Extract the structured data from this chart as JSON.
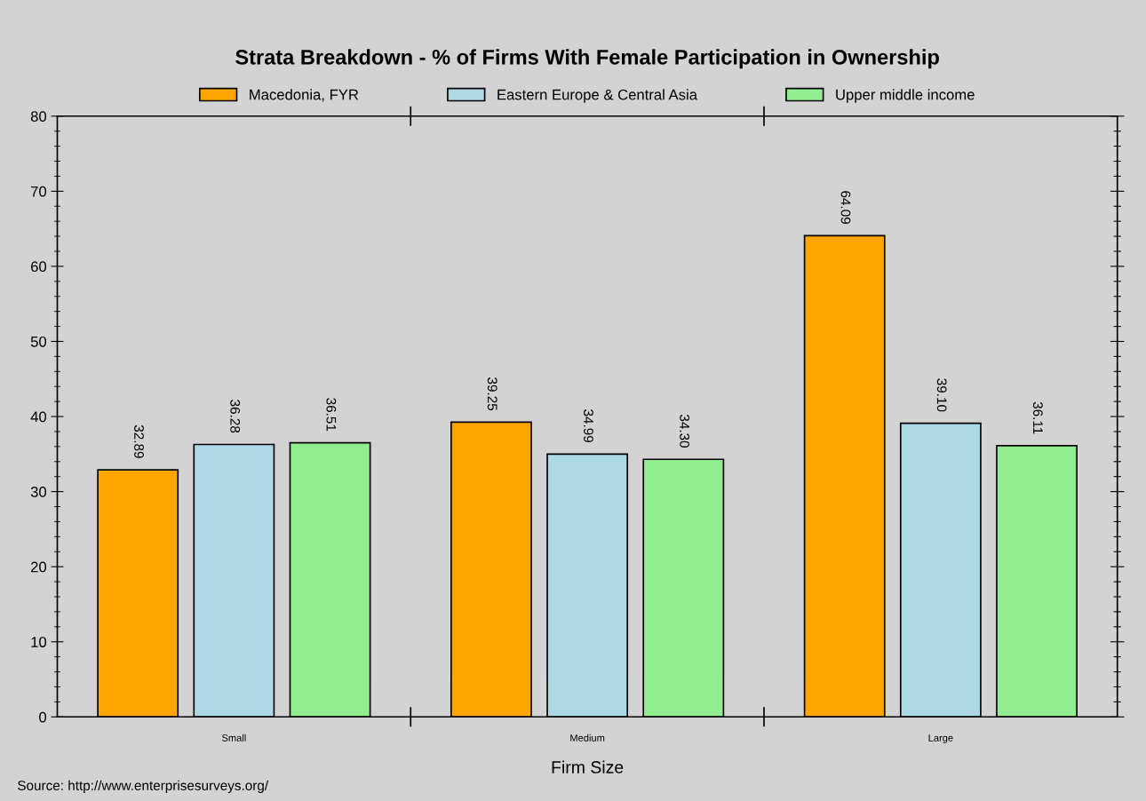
{
  "chart_data": {
    "type": "bar",
    "title": "Strata Breakdown - % of Firms With Female Participation in Ownership",
    "xlabel": "Firm Size",
    "categories": [
      "Small",
      "Medium",
      "Large"
    ],
    "series": [
      {
        "name": "Macedonia, FYR",
        "color": "#ffa500",
        "values": [
          32.89,
          39.25,
          64.09
        ],
        "value_labels": [
          "32.89",
          "39.25",
          "64.09"
        ]
      },
      {
        "name": "Eastern Europe & Central Asia",
        "color": "#add8e6",
        "values": [
          36.28,
          34.99,
          39.1
        ],
        "value_labels": [
          "36.28",
          "34.99",
          "39.10"
        ]
      },
      {
        "name": "Upper middle income",
        "color": "#90ee90",
        "values": [
          36.51,
          34.3,
          36.11
        ],
        "value_labels": [
          "36.51",
          "34.30",
          "36.11"
        ]
      }
    ],
    "ylim": [
      0,
      80
    ],
    "yticks": [
      0,
      10,
      20,
      30,
      40,
      50,
      60,
      70,
      80
    ],
    "legend": "top",
    "grid": false,
    "annotations": [
      "Source: http://www.enterprisesurveys.org/"
    ]
  }
}
